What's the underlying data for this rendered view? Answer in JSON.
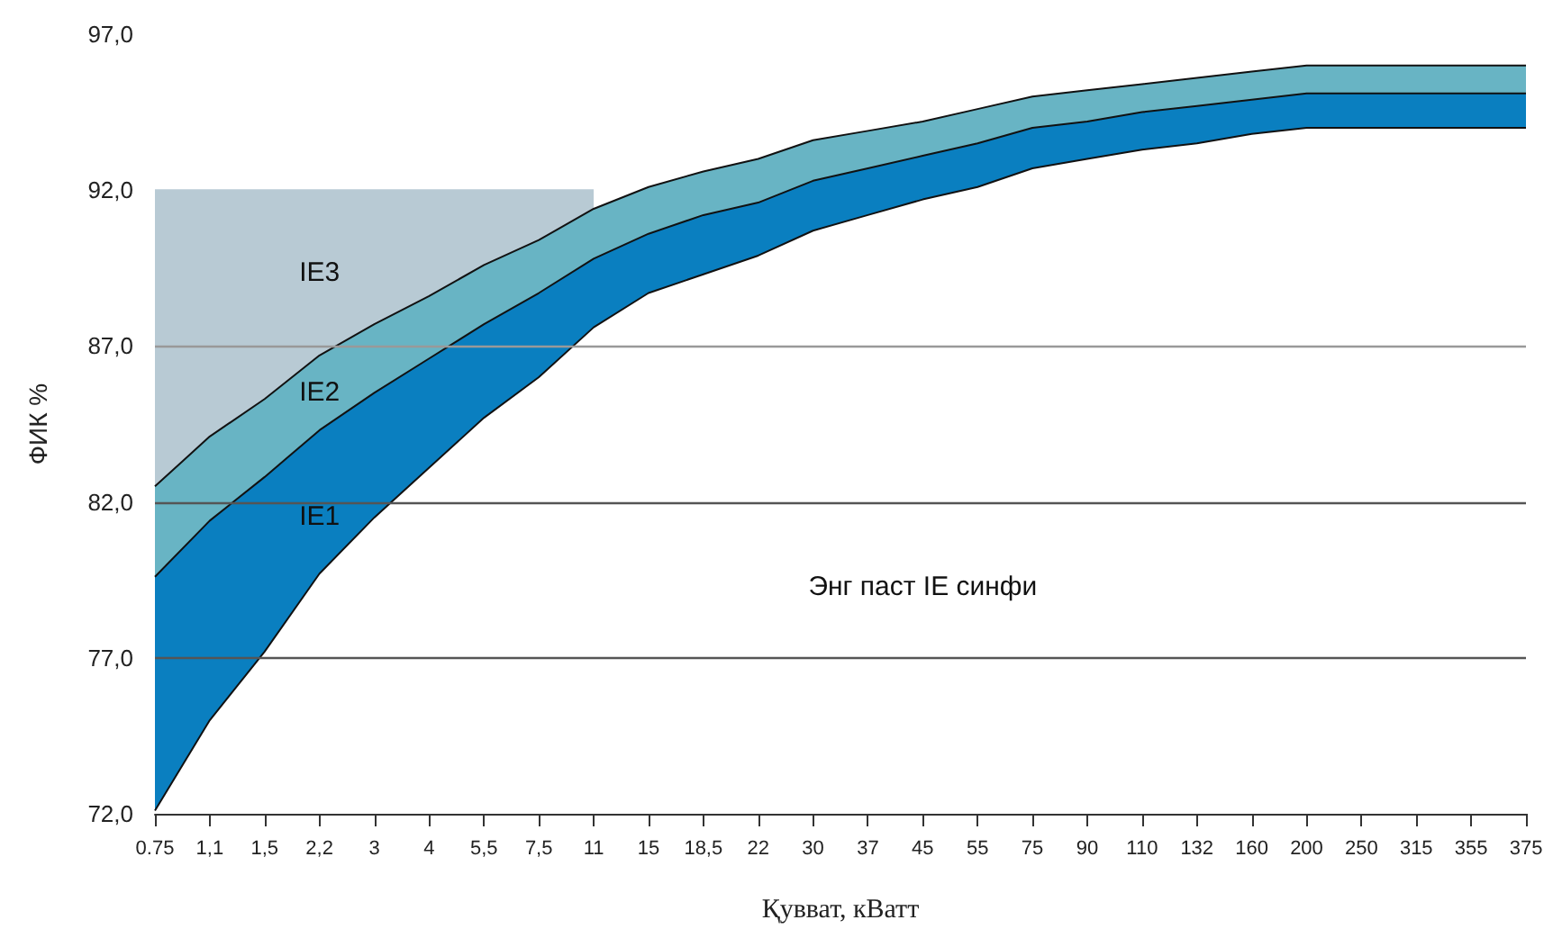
{
  "chart_data": {
    "type": "area",
    "xlabel": "Қувват, кВатт",
    "ylabel": "ФИК %",
    "categories": [
      "0.75",
      "1,1",
      "1,5",
      "2,2",
      "3",
      "4",
      "5,5",
      "7,5",
      "11",
      "15",
      "18,5",
      "22",
      "30",
      "37",
      "45",
      "55",
      "75",
      "90",
      "110",
      "132",
      "160",
      "200",
      "250",
      "315",
      "355",
      "375"
    ],
    "ylim": [
      72,
      97
    ],
    "yticks": [
      {
        "value": 72,
        "label": "72,0"
      },
      {
        "value": 77,
        "label": "77,0"
      },
      {
        "value": 82,
        "label": "82,0"
      },
      {
        "value": 87,
        "label": "87,0"
      },
      {
        "value": 92,
        "label": "92,0"
      },
      {
        "value": 97,
        "label": "97,0"
      }
    ],
    "series": [
      {
        "name": "Энг паст IE синфи",
        "color": "#ffffff",
        "values": [
          72.1,
          75.0,
          77.2,
          79.7,
          81.5,
          83.1,
          84.7,
          86.0,
          87.6,
          88.7,
          89.3,
          89.9,
          90.7,
          91.2,
          91.7,
          92.1,
          92.7,
          93.0,
          93.3,
          93.5,
          93.8,
          94.0,
          94.0,
          94.0,
          94.0,
          94.0
        ]
      },
      {
        "name": "IE1",
        "color": "#0a7fc0",
        "values": [
          79.6,
          81.4,
          82.8,
          84.3,
          85.5,
          86.6,
          87.7,
          88.7,
          89.8,
          90.6,
          91.2,
          91.6,
          92.3,
          92.7,
          93.1,
          93.5,
          94.0,
          94.2,
          94.5,
          94.7,
          94.9,
          95.1,
          95.1,
          95.1,
          95.1,
          95.1
        ]
      },
      {
        "name": "IE2",
        "color": "#68b4c4",
        "values": [
          82.5,
          84.1,
          85.3,
          86.7,
          87.7,
          88.6,
          89.6,
          90.4,
          91.4,
          92.1,
          92.6,
          93.0,
          93.6,
          93.9,
          94.2,
          94.6,
          95.0,
          95.2,
          95.4,
          95.6,
          95.8,
          96.0,
          96.0,
          96.0,
          96.0,
          96.0
        ]
      },
      {
        "name": "IE3",
        "color": "#b8cad4",
        "values": [
          92,
          92,
          92,
          92,
          92,
          92,
          92,
          92,
          92,
          null,
          null,
          null,
          null,
          null,
          null,
          null,
          null,
          null,
          null,
          null,
          null,
          null,
          null,
          null,
          null,
          null
        ]
      }
    ],
    "ref_lines": [
      {
        "axis": "y",
        "value": 77,
        "color": "#555555"
      },
      {
        "axis": "y",
        "value": 82,
        "color": "#555555"
      },
      {
        "axis": "y",
        "value": 87,
        "color": "#999999"
      }
    ]
  }
}
